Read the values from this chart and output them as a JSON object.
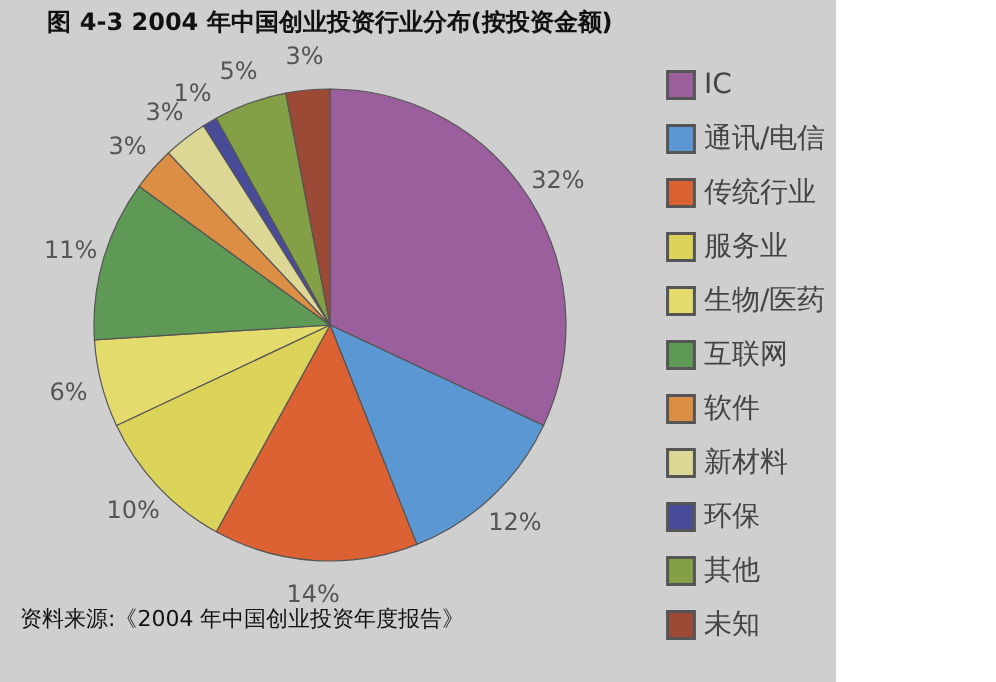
{
  "chart_data": {
    "type": "pie",
    "title": "图 4-3 2004 年中国创业投资行业分布(按投资金额)",
    "categories": [
      "IC",
      "通讯/电信",
      "传统行业",
      "服务业",
      "生物/医药",
      "互联网",
      "软件",
      "新材料",
      "环保",
      "其他",
      "未知"
    ],
    "values": [
      32,
      12,
      14,
      10,
      6,
      11,
      3,
      3,
      1,
      5,
      3
    ],
    "value_labels": [
      "32%",
      "12%",
      "14%",
      "10%",
      "6%",
      "11%",
      "3%",
      "3%",
      "1%",
      "5%",
      "3%"
    ],
    "colors": [
      "#9a5f9c",
      "#5b97d2",
      "#dc6233",
      "#dcd35a",
      "#e3db6c",
      "#5e9a55",
      "#dc8e45",
      "#ddd796",
      "#484c98",
      "#84a046",
      "#9c4a36"
    ],
    "legend": "right",
    "annotations": [
      "资料来源:《2004 年中国创业投资年度报告》"
    ]
  }
}
